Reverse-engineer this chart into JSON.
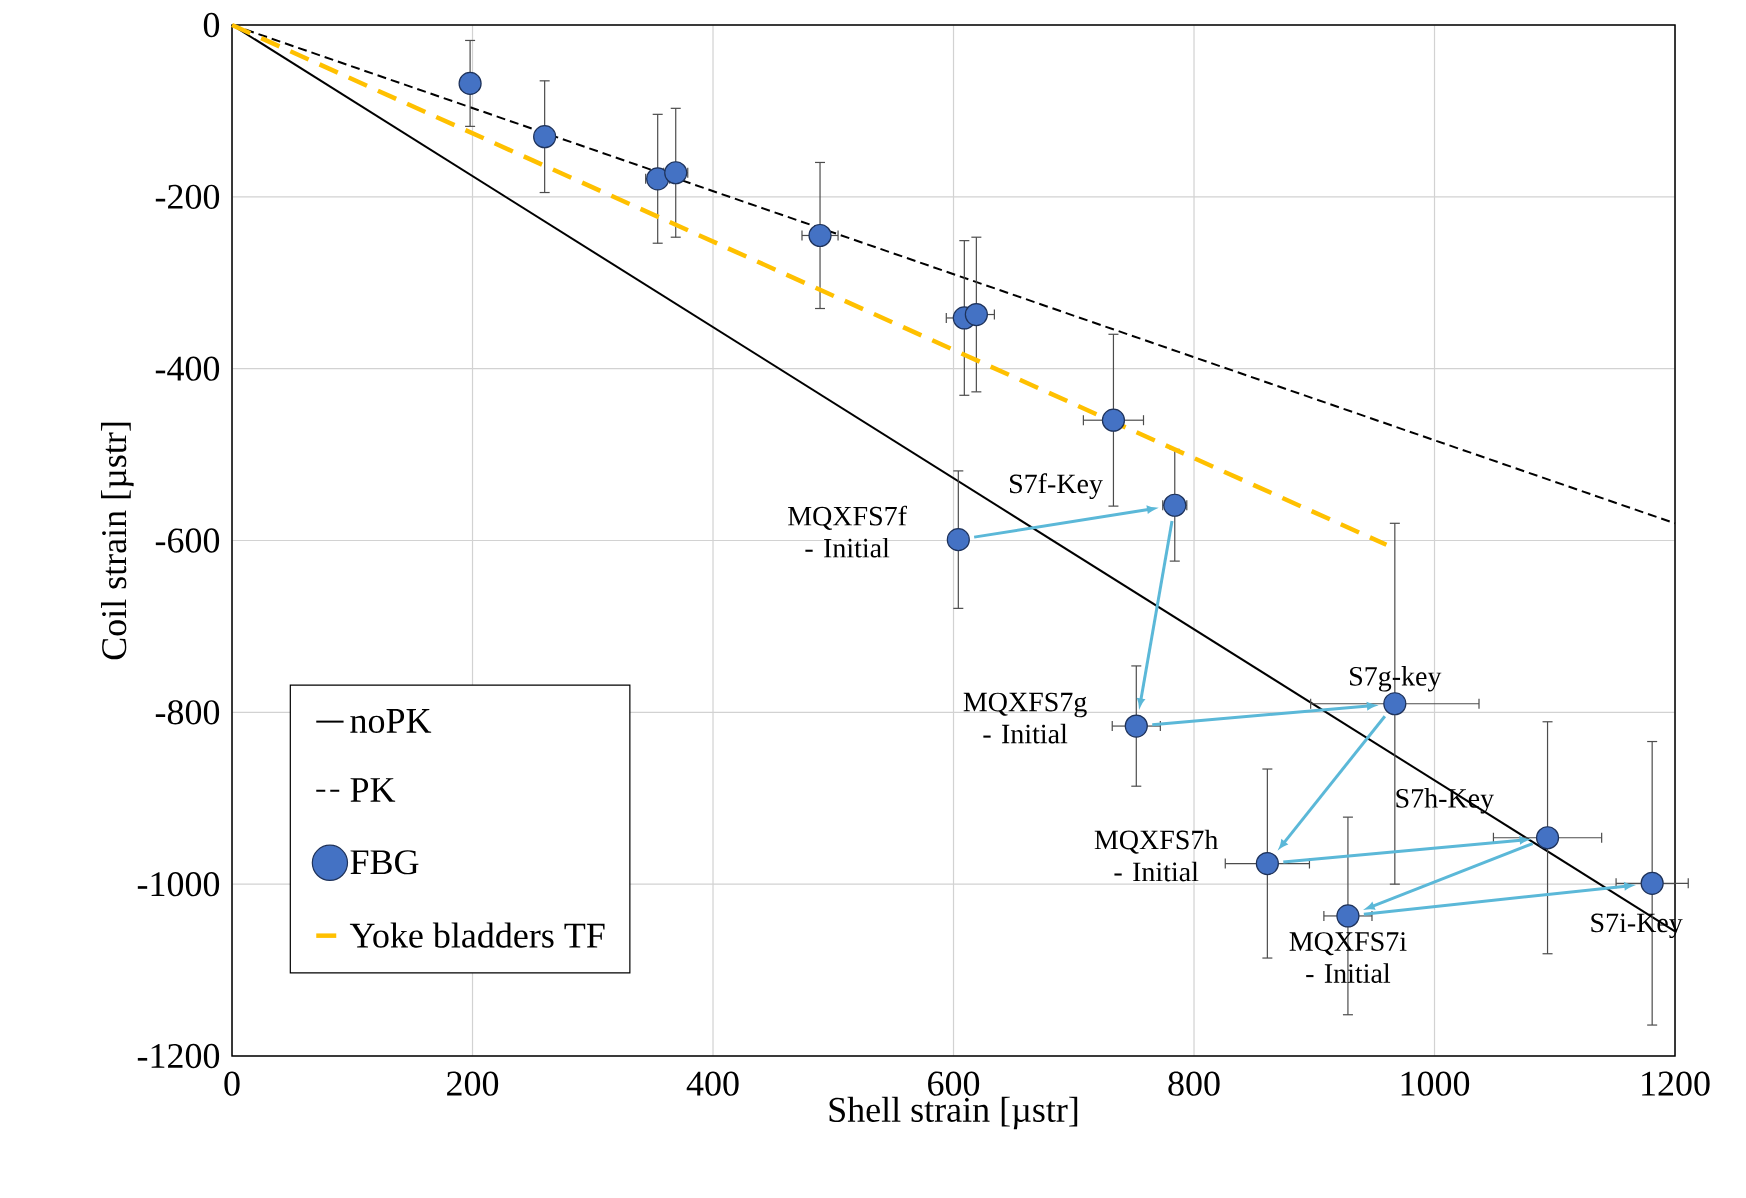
{
  "chart_data": {
    "type": "scatter",
    "xlabel": "Shell strain [µstr]",
    "ylabel": "Coil strain [µstr]",
    "xlim": [
      0,
      1200
    ],
    "ylim": [
      -1200,
      0
    ],
    "xticks": [
      0,
      200,
      400,
      600,
      800,
      1000,
      1200
    ],
    "yticks": [
      -1200,
      -1000,
      -800,
      -600,
      -400,
      -200,
      0
    ],
    "grid": true,
    "legend": "bottom left",
    "series": [
      {
        "name": "noPK",
        "type": "line",
        "color": "#000000",
        "line_style": "solid",
        "marker": "none",
        "x": [
          0,
          1200
        ],
        "values": [
          0,
          -1055
        ]
      },
      {
        "name": "PK",
        "type": "line",
        "color": "#000000",
        "line_style": "dashed",
        "marker": "none",
        "x": [
          0,
          1200
        ],
        "values": [
          0,
          -580
        ]
      },
      {
        "name": "FBG",
        "color": "#4472c4",
        "marker": "circle",
        "x": [
          198,
          260,
          354,
          369,
          489,
          609,
          619,
          733,
          784,
          604,
          752,
          967,
          861,
          928,
          1094,
          1181
        ],
        "values": [
          -68,
          -130,
          -179,
          -172,
          -245,
          -341,
          -337,
          -460,
          -559,
          -599,
          -816,
          -790,
          -976,
          -1037,
          -946,
          -999
        ],
        "errors": [
          50,
          65,
          75,
          75,
          85,
          90,
          90,
          100,
          65,
          80,
          70,
          210,
          110,
          115,
          135,
          165
        ],
        "xerrors": [
          null,
          null,
          10,
          10,
          15,
          15,
          15,
          25,
          10,
          null,
          20,
          70,
          35,
          20,
          45,
          30
        ]
      },
      {
        "name": "Yoke bladders TF",
        "type": "line",
        "color": "#ffc000",
        "line_style": "dashed",
        "marker": "none",
        "x": [
          0,
          960
        ],
        "values": [
          0,
          -605
        ]
      }
    ],
    "annotations": [
      {
        "text": "MQXFS7f - Initial",
        "x": 604,
        "y": -599
      },
      {
        "text": "S7f-Key",
        "x": 784,
        "y": -559
      },
      {
        "text": "MQXFS7g - Initial",
        "x": 752,
        "y": -816
      },
      {
        "text": "S7g-key",
        "x": 967,
        "y": -790
      },
      {
        "text": "MQXFS7h - Initial",
        "x": 861,
        "y": -976
      },
      {
        "text": "S7h-Key",
        "x": 1094,
        "y": -946
      },
      {
        "text": "MQXFS7i - Initial",
        "x": 928,
        "y": -1037
      },
      {
        "text": "S7i-Key",
        "x": 1181,
        "y": -999
      }
    ]
  }
}
